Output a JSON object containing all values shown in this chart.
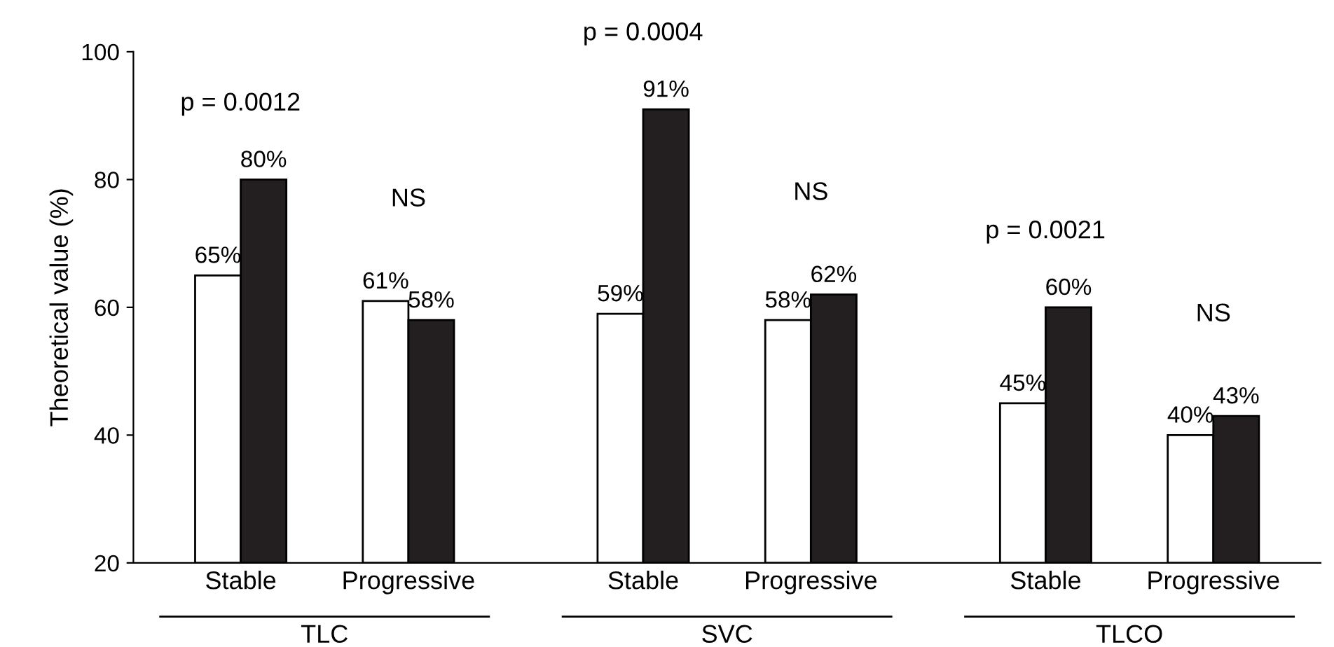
{
  "chart_data": {
    "type": "bar",
    "ylabel": "Theoretical value (%)",
    "categories": [
      "Stable",
      "Progressive",
      "Stable",
      "Progressive",
      "Stable",
      "Progressive"
    ],
    "series": [
      {
        "color": "#ffffff",
        "values": [
          65,
          61,
          59,
          58,
          45,
          40
        ],
        "value_labels": [
          "65%",
          "61%",
          "59%",
          "58%",
          "45%",
          "40%"
        ]
      },
      {
        "color": "#231f20",
        "values": [
          80,
          58,
          91,
          62,
          60,
          43
        ],
        "value_labels": [
          "80%",
          "58%",
          "91%",
          "62%",
          "60%",
          "43%"
        ]
      }
    ],
    "annotations": [
      "p = 0.0012",
      "NS",
      "p = 0.0004",
      "NS",
      "p = 0.0021",
      "NS",
      "TLC",
      "SVC",
      "TLCO"
    ],
    "ylim": [
      20,
      100
    ],
    "yticks": [
      20,
      40,
      60,
      80,
      100
    ],
    "grid": false,
    "legend": false
  }
}
